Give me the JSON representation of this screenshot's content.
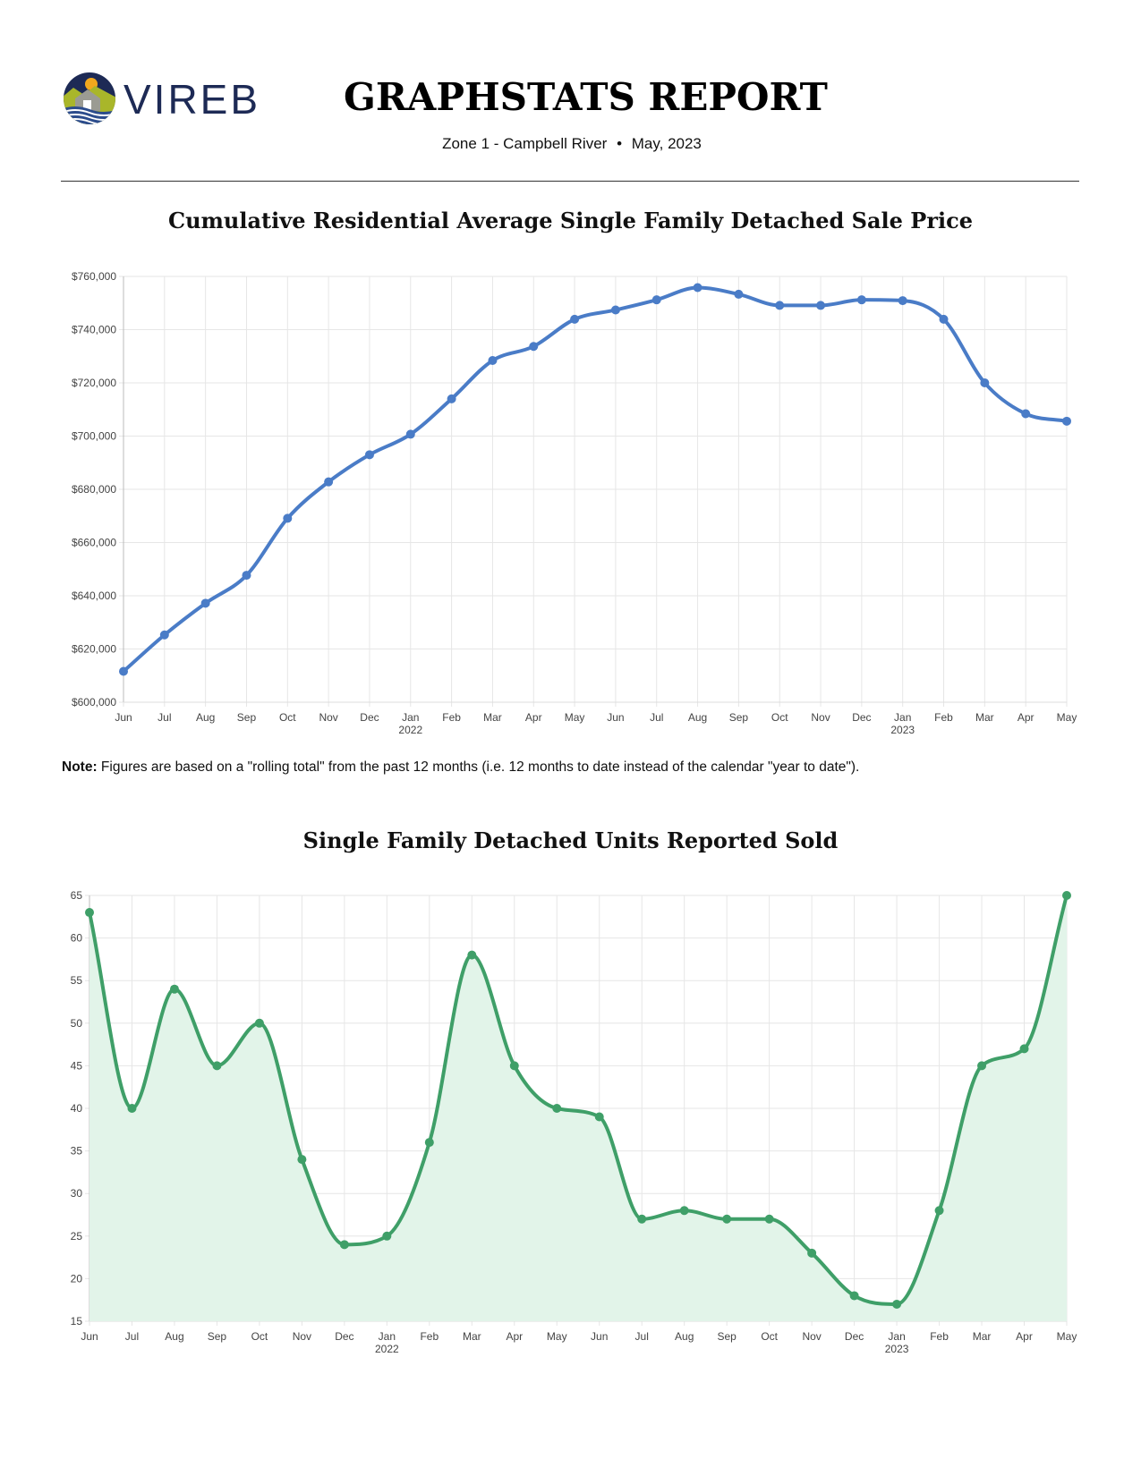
{
  "header": {
    "logo_text": "VIREB",
    "title": "GRAPHSTATS REPORT",
    "subtitle_zone": "Zone 1 - Campbell River",
    "subtitle_separator": "•",
    "subtitle_date": "May, 2023"
  },
  "note": {
    "label": "Note:",
    "text": "Figures are based on a \"rolling total\" from the past 12 months (i.e. 12 months to date instead of the calendar \"year to date\")."
  },
  "colors": {
    "price_line": "#4a7cc7",
    "units_line": "#3f9f68",
    "units_fill": "#e2f4e9",
    "grid": "#e6e6e6",
    "logo_navy": "#1d2a55"
  },
  "chart_data": [
    {
      "type": "line",
      "title": "Cumulative Residential Average Single Family Detached Sale Price",
      "xlabel": "",
      "ylabel": "",
      "categories": [
        "Jun",
        "Jul",
        "Aug",
        "Sep",
        "Oct",
        "Nov",
        "Dec",
        "Jan",
        "Feb",
        "Mar",
        "Apr",
        "May",
        "Jun",
        "Jul",
        "Aug",
        "Sep",
        "Oct",
        "Nov",
        "Dec",
        "Jan",
        "Feb",
        "Mar",
        "Apr",
        "May"
      ],
      "year_labels": {
        "7": "2022",
        "19": "2023"
      },
      "ylim": [
        600000,
        760000
      ],
      "yticks": [
        600000,
        620000,
        640000,
        660000,
        680000,
        700000,
        720000,
        740000,
        760000
      ],
      "ytick_labels": [
        "$600,000",
        "$620,000",
        "$640,000",
        "$660,000",
        "$680,000",
        "$700,000",
        "$720,000",
        "$740,000",
        "$760,000"
      ],
      "grid": true,
      "legend": "none",
      "series": [
        {
          "name": "Average Sale Price",
          "values": [
            611600,
            625300,
            637200,
            647700,
            669100,
            682800,
            693000,
            700700,
            714000,
            728400,
            733700,
            743900,
            747400,
            751200,
            755800,
            753300,
            749100,
            749100,
            751200,
            750900,
            743900,
            720000,
            708400,
            705600
          ]
        }
      ]
    },
    {
      "type": "area",
      "title": "Single Family Detached Units Reported Sold",
      "xlabel": "",
      "ylabel": "",
      "categories": [
        "Jun",
        "Jul",
        "Aug",
        "Sep",
        "Oct",
        "Nov",
        "Dec",
        "Jan",
        "Feb",
        "Mar",
        "Apr",
        "May",
        "Jun",
        "Jul",
        "Aug",
        "Sep",
        "Oct",
        "Nov",
        "Dec",
        "Jan",
        "Feb",
        "Mar",
        "Apr",
        "May"
      ],
      "year_labels": {
        "7": "2022",
        "19": "2023"
      },
      "ylim": [
        15,
        65
      ],
      "yticks": [
        15,
        20,
        25,
        30,
        35,
        40,
        45,
        50,
        55,
        60,
        65
      ],
      "ytick_labels": [
        "15",
        "20",
        "25",
        "30",
        "35",
        "40",
        "45",
        "50",
        "55",
        "60",
        "65"
      ],
      "grid": true,
      "legend": "none",
      "series": [
        {
          "name": "Units Sold",
          "values": [
            63,
            40,
            54,
            45,
            50,
            34,
            24,
            25,
            36,
            58,
            45,
            40,
            39,
            27,
            28,
            27,
            27,
            23,
            18,
            17,
            28,
            45,
            47,
            65
          ]
        }
      ]
    }
  ]
}
